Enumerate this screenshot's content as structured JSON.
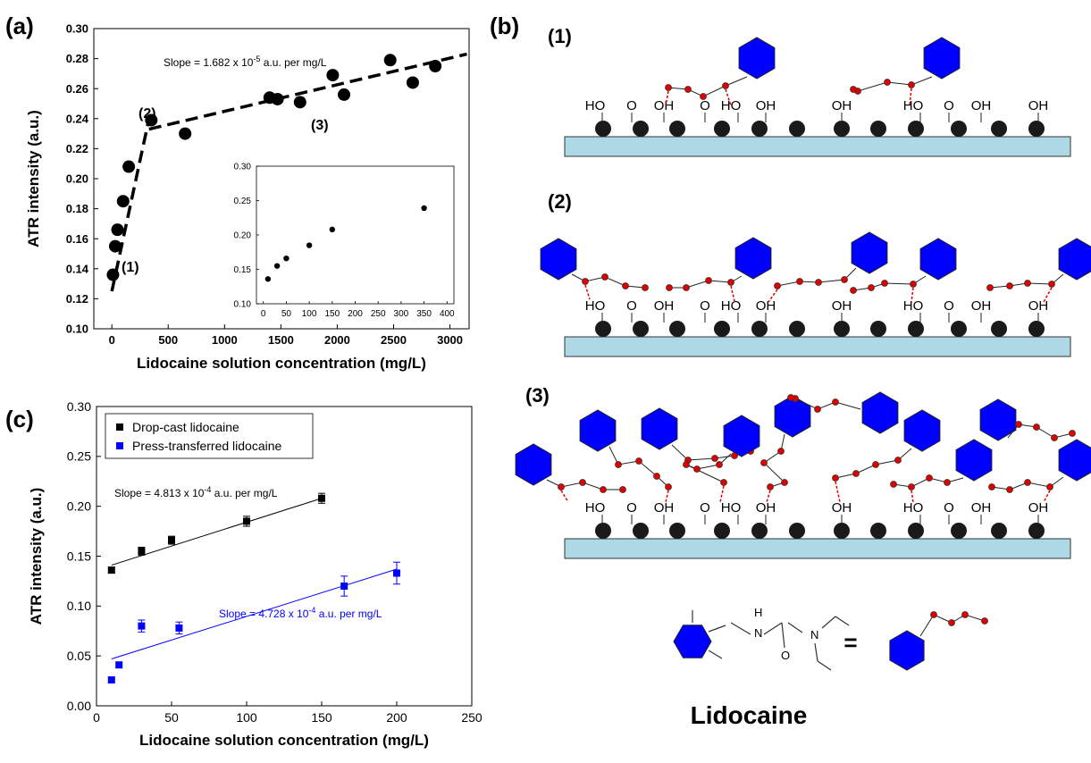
{
  "panel_labels": [
    "(a)",
    "(b)",
    "(c)"
  ],
  "chart_data": [
    {
      "type": "scatter",
      "xlabel": "Lidocaine solution concentration (mg/L)",
      "ylabel": "ATR intensity (a.u.)",
      "xlim": [
        -160,
        3170
      ],
      "ylim": [
        0.1,
        0.3
      ],
      "xticks": [
        0,
        500,
        1000,
        1500,
        2000,
        2500,
        3000
      ],
      "yticks": [
        {
          "value": 0.1,
          "label": "0.10"
        },
        {
          "value": 0.12,
          "label": "0.12"
        },
        {
          "value": 0.14,
          "label": "0.14"
        },
        {
          "value": 0.16,
          "label": "0.16"
        },
        {
          "value": 0.18,
          "label": "0.18"
        },
        {
          "value": 0.2,
          "label": "0.20"
        },
        {
          "value": 0.22,
          "label": "0.22"
        },
        {
          "value": 0.24,
          "label": "0.24"
        },
        {
          "value": 0.26,
          "label": "0.26"
        },
        {
          "value": 0.28,
          "label": "0.28"
        },
        {
          "value": 0.3,
          "label": "0.30"
        }
      ],
      "series": [
        {
          "color": "#000000",
          "marker": "circle",
          "x": [
            10,
            30,
            50,
            100,
            150,
            350,
            650,
            1400,
            1470,
            1670,
            1960,
            2060,
            2470,
            2670,
            2870
          ],
          "values": [
            0.136,
            0.155,
            0.166,
            0.185,
            0.208,
            0.239,
            0.23,
            0.254,
            0.253,
            0.251,
            0.269,
            0.256,
            0.279,
            0.264,
            0.275
          ]
        }
      ],
      "fits": [
        {
          "color": "#000000",
          "dashed": true,
          "x": [
            0,
            330
          ],
          "values": [
            0.125,
            0.24
          ]
        },
        {
          "color": "#000000",
          "dashed": true,
          "x": [
            330,
            3150
          ],
          "values": [
            0.233,
            0.283
          ]
        }
      ],
      "annotations": [
        "(1)",
        "(2)",
        "(3)"
      ],
      "slope_text": [
        "Slope = 1.682 x 10",
        "-5",
        " a.u. per mg/L"
      ]
    },
    {
      "type": "scatter",
      "xlim": [
        -15,
        415
      ],
      "ylim": [
        0.1,
        0.3
      ],
      "xticks": [
        0,
        50,
        100,
        150,
        200,
        250,
        300,
        350,
        400
      ],
      "yticks": [
        {
          "value": 0.1,
          "label": "0.10"
        },
        {
          "value": 0.15,
          "label": "0.15"
        },
        {
          "value": 0.2,
          "label": "0.20"
        },
        {
          "value": 0.25,
          "label": "0.25"
        },
        {
          "value": 0.3,
          "label": "0.30"
        }
      ],
      "series": [
        {
          "color": "#000000",
          "marker": "circle",
          "x": [
            10,
            30,
            50,
            100,
            150,
            350
          ],
          "values": [
            0.136,
            0.155,
            0.166,
            0.185,
            0.208,
            0.239
          ]
        }
      ]
    },
    {
      "type": "scatter",
      "xlabel": "Lidocaine solution concentration (mg/L)",
      "ylabel": "ATR intensity (a.u.)",
      "xlim": [
        0,
        250
      ],
      "ylim": [
        0,
        0.3
      ],
      "xticks": [
        0,
        50,
        100,
        150,
        200,
        250
      ],
      "yticks": [
        {
          "value": 0,
          "label": "0.00"
        },
        {
          "value": 0.05,
          "label": "0.05"
        },
        {
          "value": 0.1,
          "label": "0.10"
        },
        {
          "value": 0.15,
          "label": "0.15"
        },
        {
          "value": 0.2,
          "label": "0.20"
        },
        {
          "value": 0.25,
          "label": "0.25"
        },
        {
          "value": 0.3,
          "label": "0.30"
        }
      ],
      "legend": "upper left",
      "series": [
        {
          "name": "Drop-cast lidocaine",
          "color": "#000000",
          "marker": "square",
          "x": [
            10,
            30,
            50,
            100,
            150
          ],
          "values": [
            0.136,
            0.155,
            0.166,
            0.185,
            0.208
          ],
          "errors": [
            0.003,
            0.004,
            0.004,
            0.005,
            0.005
          ],
          "annotation": [
            "Slope = 4.813 x 10",
            "-4",
            " a.u. per mg/L"
          ]
        },
        {
          "name": "Press-transferred lidocaine",
          "color": "#0000ff",
          "marker": "square",
          "x": [
            10,
            15,
            30,
            55,
            165,
            200
          ],
          "values": [
            0.026,
            0.041,
            0.08,
            0.078,
            0.12,
            0.133
          ],
          "errors": [
            0,
            0,
            0.006,
            0.006,
            0.01,
            0.011
          ],
          "annotation": [
            "Slope = 4.728 x 10",
            "-4",
            " a.u. per mg/L"
          ]
        }
      ],
      "fits": [
        {
          "color": "#000000",
          "dashed": false,
          "x": [
            10,
            150
          ],
          "values": [
            0.141,
            0.208
          ]
        },
        {
          "color": "#0000ff",
          "dashed": false,
          "x": [
            10,
            200
          ],
          "values": [
            0.047,
            0.137
          ]
        }
      ]
    }
  ],
  "diagram": {
    "scene_labels": [
      "(1)",
      "(2)",
      "(3)"
    ],
    "surface_labels": [
      "HO",
      "O",
      "OH",
      "O",
      "HO",
      "OH",
      "OH",
      "HO",
      "O",
      "OH",
      "OH"
    ],
    "molecule_atoms": [
      "H",
      "N",
      "O",
      "N"
    ],
    "equals": "=",
    "name": "Lidocaine"
  }
}
